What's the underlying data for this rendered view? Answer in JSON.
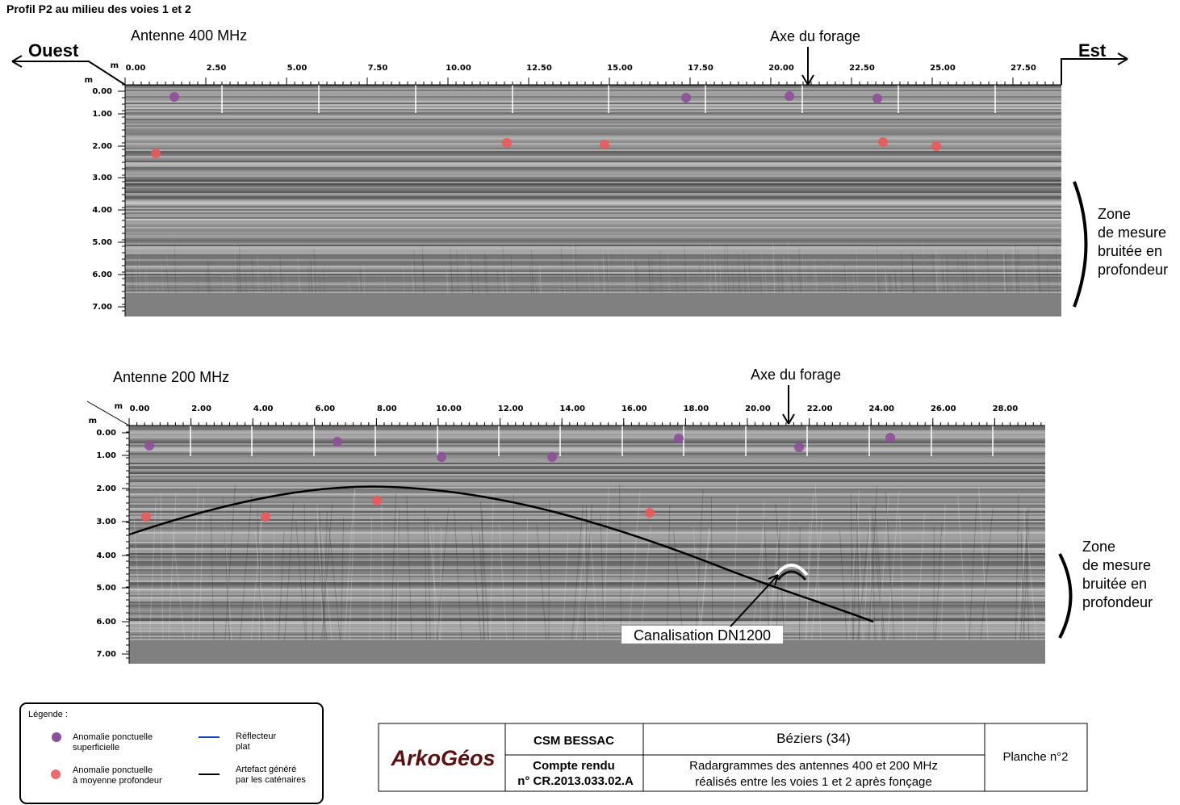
{
  "header": {
    "title": "Profil P2 au milieu des voies 1 et 2",
    "west": "Ouest",
    "east": "Est"
  },
  "panels": [
    {
      "antenna": "Antenne 400 MHz",
      "axis_label": "Axe du forage",
      "x_unit": "m",
      "y_unit": "m",
      "x_ticks": [
        "0.00",
        "2.50",
        "5.00",
        "7.50",
        "10.00",
        "12.50",
        "15.00",
        "17.50",
        "20.00",
        "22.50",
        "25.00",
        "27.50"
      ],
      "depth_ticks": [
        "0.00",
        "1.00",
        "2.00",
        "3.00",
        "4.00",
        "5.00",
        "6.00",
        "7.00"
      ],
      "zone_note": [
        "Zone",
        "de mesure",
        "bruitée en",
        "profondeur"
      ]
    },
    {
      "antenna": "Antenne 200 MHz",
      "axis_label": "Axe du forage",
      "x_unit": "m",
      "y_unit": "m",
      "x_ticks": [
        "0.00",
        "2.00",
        "4.00",
        "6.00",
        "8.00",
        "10.00",
        "12.00",
        "14.00",
        "16.00",
        "18.00",
        "20.00",
        "22.00",
        "24.00",
        "26.00",
        "28.00"
      ],
      "depth_ticks": [
        "0.00",
        "1.00",
        "2.00",
        "3.00",
        "4.00",
        "5.00",
        "6.00",
        "7.00"
      ],
      "zone_note": [
        "Zone",
        "de mesure",
        "bruitée en",
        "profondeur"
      ],
      "annotation": "Canalisation DN1200"
    }
  ],
  "legend": {
    "title": "Légende :",
    "items": [
      {
        "lines": [
          "Anomalie ponctuelle",
          "superficielle"
        ]
      },
      {
        "lines": [
          "Réflecteur",
          "plat"
        ]
      },
      {
        "lines": [
          "Anomalie ponctuelle",
          "à moyenne profondeur"
        ]
      },
      {
        "lines": [
          "Artefact généré",
          "par les caténaires"
        ]
      }
    ]
  },
  "title_block": {
    "logo": "ArkoGéos",
    "client": "CSM BESSAC",
    "location": "Béziers (34)",
    "report": [
      "Compte rendu",
      "n° CR.2013.033.02.A"
    ],
    "description": [
      "Radargrammes des antennes 400 et 200 MHz",
      "réalisés entre les voies 1 et 2 après fonçage"
    ],
    "sheet": "Planche n°2"
  }
}
